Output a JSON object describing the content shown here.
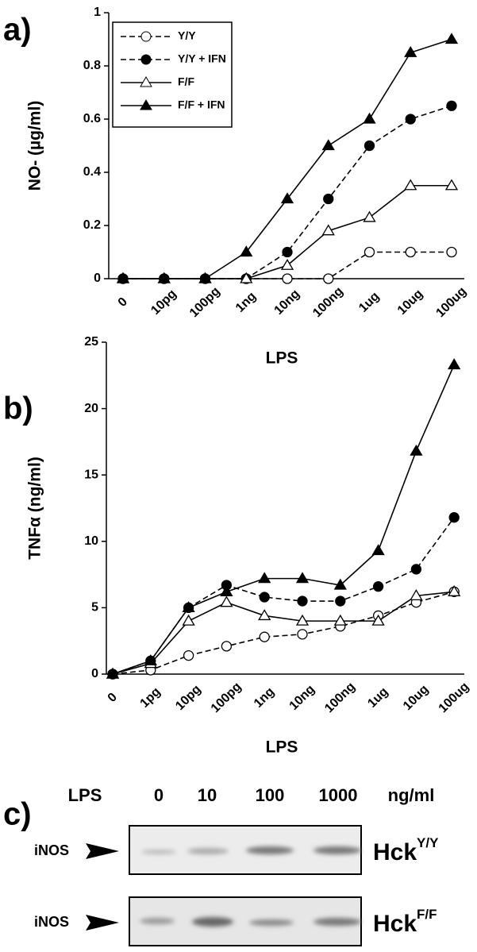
{
  "chart_data": [
    {
      "type": "line",
      "label": "a)",
      "x_label": "LPS",
      "y_label": "NO- (µg/ml)",
      "categories": [
        "0",
        "10pg",
        "100pg",
        "1ng",
        "10ng",
        "100ng",
        "1ug",
        "10ug",
        "100ug"
      ],
      "ylim": [
        0,
        1
      ],
      "yticks": [
        0,
        0.2,
        0.4,
        0.6,
        0.8,
        1
      ],
      "grid": false,
      "legend": "upper left",
      "series": [
        {
          "name": "Y/Y",
          "color": "#000000",
          "marker": "circle",
          "filled": false,
          "dashed": true,
          "values": [
            0,
            0,
            0,
            0,
            0,
            0,
            0.1,
            0.1,
            0.1
          ]
        },
        {
          "name": "Y/Y + IFN",
          "color": "#000000",
          "marker": "circle",
          "filled": true,
          "dashed": true,
          "values": [
            0,
            0,
            0,
            0,
            0.1,
            0.3,
            0.5,
            0.6,
            0.65
          ]
        },
        {
          "name": "F/F",
          "color": "#000000",
          "marker": "triangle",
          "filled": false,
          "dashed": false,
          "values": [
            0,
            0,
            0,
            0,
            0.05,
            0.18,
            0.23,
            0.35,
            0.35
          ]
        },
        {
          "name": "F/F + IFN",
          "color": "#000000",
          "marker": "triangle",
          "filled": true,
          "dashed": false,
          "values": [
            0,
            0,
            0,
            0.1,
            0.3,
            0.5,
            0.6,
            0.85,
            0.9
          ]
        }
      ]
    },
    {
      "type": "line",
      "label": "b)",
      "x_label": "LPS",
      "y_label": "TNFα (ng/ml)",
      "categories": [
        "0",
        "1pg",
        "10pg",
        "100pg",
        "1ng",
        "10ng",
        "100ng",
        "1ug",
        "10ug",
        "100ug"
      ],
      "ylim": [
        0,
        25
      ],
      "yticks": [
        0,
        5,
        10,
        15,
        20,
        25
      ],
      "grid": false,
      "series": [
        {
          "color": "#000000",
          "marker": "circle",
          "filled": false,
          "dashed": true,
          "values": [
            0,
            0.3,
            1.4,
            2.1,
            2.8,
            3.0,
            3.6,
            4.4,
            5.4,
            6.2
          ]
        },
        {
          "color": "#000000",
          "marker": "circle",
          "filled": true,
          "dashed": true,
          "values": [
            0,
            1.0,
            5.0,
            6.7,
            5.8,
            5.5,
            5.5,
            6.6,
            7.9,
            11.8
          ]
        },
        {
          "color": "#000000",
          "marker": "triangle",
          "filled": false,
          "dashed": false,
          "values": [
            0,
            0.8,
            4.0,
            5.4,
            4.4,
            4.0,
            4.0,
            4.0,
            5.9,
            6.2
          ]
        },
        {
          "color": "#000000",
          "marker": "triangle",
          "filled": true,
          "dashed": false,
          "values": [
            0,
            1.0,
            5.0,
            6.2,
            7.2,
            7.2,
            6.7,
            9.3,
            16.8,
            23.3
          ]
        }
      ]
    }
  ],
  "blot": {
    "label": "c)",
    "header": [
      "LPS",
      "0",
      "10",
      "100",
      "1000",
      "ng/ml"
    ],
    "rows": [
      {
        "band": "iNOS",
        "genotype": "Hck",
        "allele": "Y/Y"
      },
      {
        "band": "iNOS",
        "genotype": "Hck",
        "allele": "F/F"
      }
    ]
  }
}
